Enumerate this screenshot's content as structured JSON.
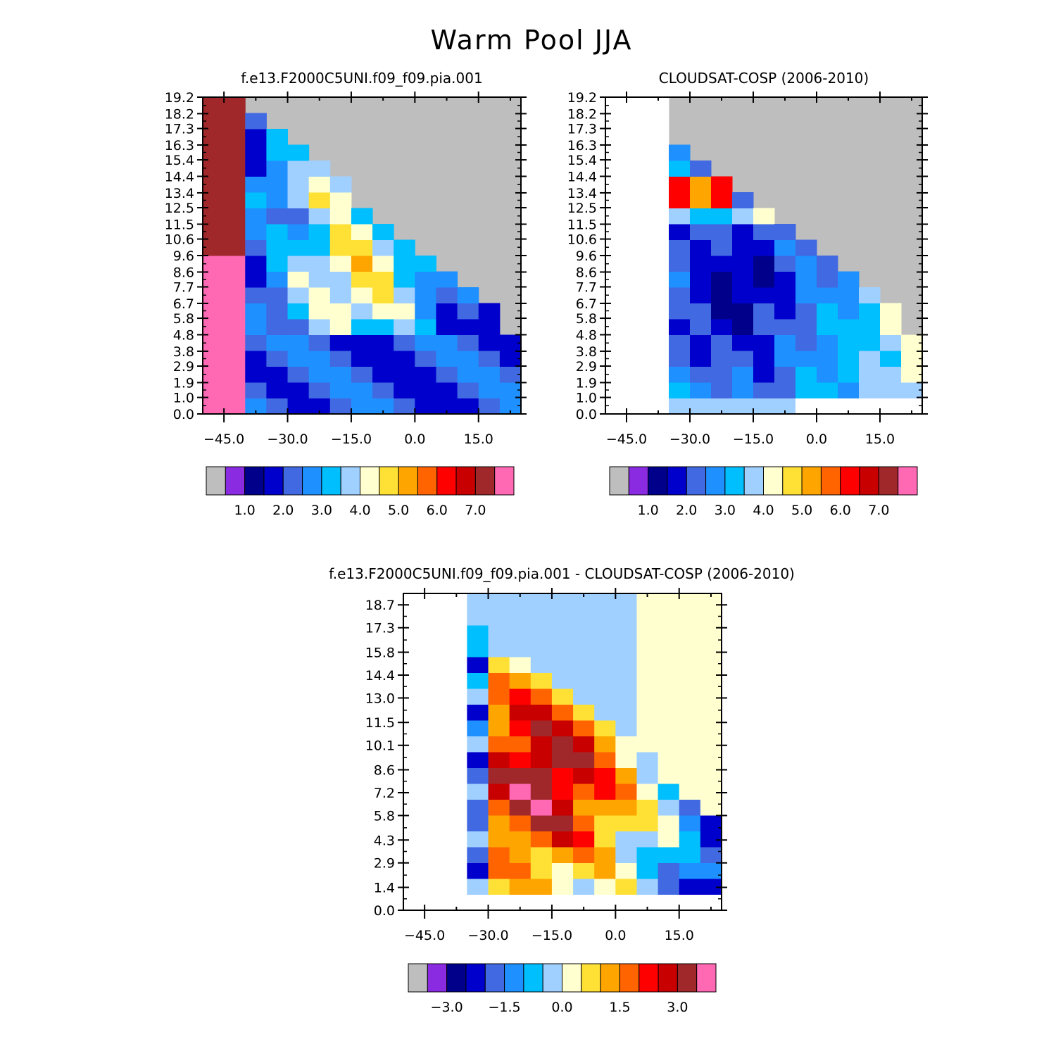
{
  "figure": {
    "title": "Warm Pool JJA"
  },
  "chart_data": [
    {
      "type": "heatmap",
      "title": "f.e13.F2000C5UNI.f09_f09.pia.001",
      "xlabel": "",
      "ylabel": "",
      "xlim": [
        -50,
        25
      ],
      "ylim": [
        0,
        19.2
      ],
      "x_ticks": [
        "-45.0",
        "-30.0",
        "-15.0",
        "0.0",
        "15.0"
      ],
      "y_ticks": [
        "0.0",
        "1.0",
        "1.9",
        "2.9",
        "3.8",
        "4.8",
        "5.8",
        "6.7",
        "7.7",
        "8.6",
        "9.6",
        "10.6",
        "11.5",
        "12.5",
        "13.4",
        "14.4",
        "15.4",
        "16.3",
        "17.3",
        "18.2",
        "19.2"
      ],
      "missing_color": "#bebebe",
      "colorbar": {
        "colors": [
          "#bebebe",
          "#8a2be2",
          "#00008b",
          "#0000cd",
          "#4169e1",
          "#1e90ff",
          "#00bfff",
          "#a0d0ff",
          "#ffffd0",
          "#ffe135",
          "#ffa500",
          "#ff6400",
          "#ff0000",
          "#c80000",
          "#a0282a",
          "#ff69b4"
        ],
        "labels": [
          "1.0",
          "2.0",
          "3.0",
          "4.0",
          "5.0",
          "6.0",
          "7.0"
        ]
      }
    },
    {
      "type": "heatmap",
      "title": "CLOUDSAT-COSP (2006-2010)",
      "xlabel": "",
      "ylabel": "",
      "xlim": [
        -50,
        25
      ],
      "ylim": [
        0,
        19.2
      ],
      "x_ticks": [
        "-45.0",
        "-30.0",
        "-15.0",
        "0.0",
        "15.0"
      ],
      "y_ticks": [
        "0.0",
        "1.0",
        "1.9",
        "2.9",
        "3.8",
        "4.8",
        "5.8",
        "6.7",
        "7.7",
        "8.6",
        "9.6",
        "10.6",
        "11.5",
        "12.5",
        "13.4",
        "14.4",
        "15.4",
        "16.3",
        "17.3",
        "18.2",
        "19.2"
      ],
      "missing_color": "#bebebe",
      "colorbar": {
        "colors": [
          "#bebebe",
          "#8a2be2",
          "#00008b",
          "#0000cd",
          "#4169e1",
          "#1e90ff",
          "#00bfff",
          "#a0d0ff",
          "#ffffd0",
          "#ffe135",
          "#ffa500",
          "#ff6400",
          "#ff0000",
          "#c80000",
          "#a0282a",
          "#ff69b4"
        ],
        "labels": [
          "1.0",
          "2.0",
          "3.0",
          "4.0",
          "5.0",
          "6.0",
          "7.0"
        ]
      }
    },
    {
      "type": "heatmap",
      "title": "f.e13.F2000C5UNI.f09_f09.pia.001 - CLOUDSAT-COSP (2006-2010)",
      "xlabel": "",
      "ylabel": "",
      "xlim": [
        -50,
        25
      ],
      "ylim": [
        0,
        19.4
      ],
      "x_ticks": [
        "-45.0",
        "-30.0",
        "-15.0",
        "0.0",
        "15.0"
      ],
      "y_ticks": [
        "0.0",
        "1.4",
        "2.9",
        "4.3",
        "5.8",
        "7.2",
        "8.6",
        "10.1",
        "11.5",
        "13.0",
        "14.4",
        "15.8",
        "17.3",
        "18.7"
      ],
      "missing_color": "#bebebe",
      "colorbar": {
        "colors": [
          "#bebebe",
          "#8a2be2",
          "#00008b",
          "#0000cd",
          "#4169e1",
          "#1e90ff",
          "#00bfff",
          "#a0d0ff",
          "#ffffd0",
          "#ffe135",
          "#ffa500",
          "#ff6400",
          "#ff0000",
          "#c80000",
          "#a0282a",
          "#ff69b4"
        ],
        "labels": [
          "-3.0",
          "-1.5",
          "0.0",
          "1.5",
          "3.0"
        ]
      }
    }
  ]
}
